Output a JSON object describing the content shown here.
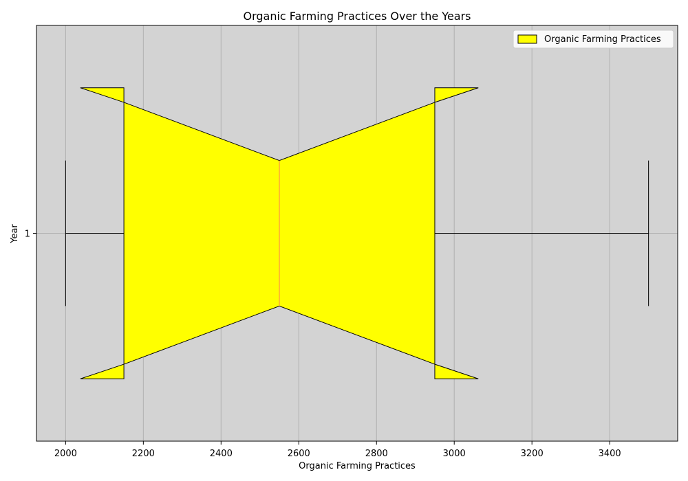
{
  "chart_data": {
    "type": "box",
    "orientation": "horizontal",
    "notched": true,
    "title": "Organic Farming Practices Over the Years",
    "xlabel": "Organic Farming Practices",
    "ylabel": "Year",
    "xlim": [
      1925,
      3575
    ],
    "ylim": [
      0.5,
      1.5
    ],
    "x_ticks": [
      2000,
      2200,
      2400,
      2600,
      2800,
      3000,
      3200,
      3400
    ],
    "y_ticks": [
      1
    ],
    "grid": "vertical",
    "legend_position": "top-right",
    "colors": {
      "plot_background": "#d3d3d3",
      "box_fill": "#ffff00",
      "median_line": "#ff7f50",
      "box_edge": "#000000",
      "grid": "#b0b0b0"
    },
    "series": [
      {
        "name": "Organic Farming Practices",
        "position": 1,
        "whisker_low": 2000,
        "q1": 2150,
        "median": 2550,
        "q3": 2950,
        "whisker_high": 3500,
        "notch_low": 2038,
        "notch_high": 3062
      }
    ]
  }
}
